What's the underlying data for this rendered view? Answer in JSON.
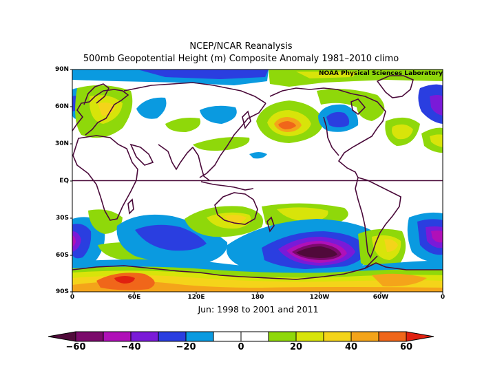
{
  "header": {
    "title": "NCEP/NCAR Reanalysis",
    "subtitle": "500mb Geopotential Height (m) Composite Anomaly 1981–2010 climo",
    "credit": "NOAA Physical Sciences Laboratory"
  },
  "map": {
    "period_label": "Jun: 1998 to 2001 and 2011",
    "lat_labels": [
      "90N",
      "60N",
      "30N",
      "EQ",
      "30S",
      "60S",
      "90S"
    ],
    "lon_labels": [
      "0",
      "60E",
      "120E",
      "180",
      "120W",
      "60W",
      "0"
    ],
    "projection": "cylindrical equidistant",
    "lon_range": [
      0,
      360
    ],
    "lat_range": [
      -90,
      90
    ]
  },
  "colorbar": {
    "labels": [
      "−60",
      "−40",
      "−20",
      "0",
      "20",
      "40",
      "60"
    ],
    "levels": [
      -60,
      -50,
      -40,
      -30,
      -20,
      -10,
      0,
      10,
      20,
      30,
      40,
      50,
      60
    ],
    "colors": [
      "#7b0a6b",
      "#b010b8",
      "#7a1ad8",
      "#2a3ee0",
      "#0a9ae0",
      "#ffffff",
      "#ffffff",
      "#8fd80a",
      "#d8e40a",
      "#f4d41a",
      "#f4a41a",
      "#f0661a",
      "#e02010",
      "#c8101a"
    ],
    "under_color": "#500a3a",
    "over_color": "#e02010"
  }
}
